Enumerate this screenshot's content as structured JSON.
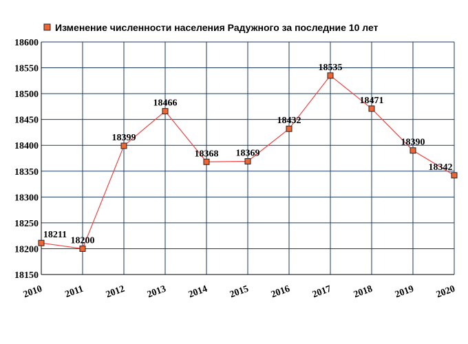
{
  "chart_data": {
    "type": "line",
    "title": "",
    "xlabel": "",
    "ylabel": "",
    "legend": {
      "label": "Изменение численности населения Радужного за последние 10 лет",
      "position": "top"
    },
    "categories": [
      "2010",
      "2011",
      "2012",
      "2013",
      "2014",
      "2015",
      "2016",
      "2017",
      "2018",
      "2019",
      "2020"
    ],
    "series": [
      {
        "name": "Изменение численности населения Радужного за последние 10 лет",
        "values": [
          18211,
          18200,
          18399,
          18466,
          18368,
          18369,
          18432,
          18535,
          18471,
          18390,
          18342
        ]
      }
    ],
    "data_labels": [
      "18211",
      "18200",
      "18399",
      "18466",
      "18368",
      "18369",
      "18432",
      "18535",
      "18471",
      "18390",
      "18342"
    ],
    "ylim": [
      18150,
      18600
    ],
    "yticks": [
      18150,
      18200,
      18250,
      18300,
      18350,
      18400,
      18450,
      18500,
      18550,
      18600
    ],
    "grid": true,
    "colors": {
      "line": "#ee4444",
      "marker_fill": "#ee6633",
      "marker_stroke": "#222222",
      "grid": "#1a3a5c",
      "axis": "#000000"
    }
  }
}
